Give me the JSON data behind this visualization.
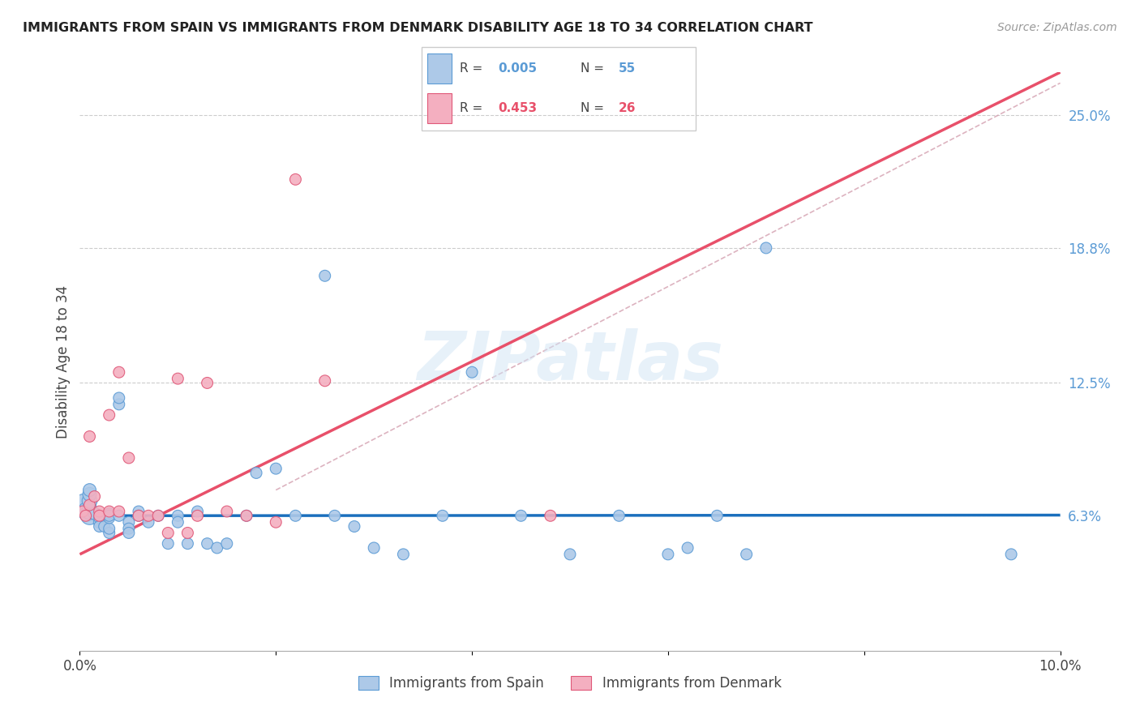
{
  "title": "IMMIGRANTS FROM SPAIN VS IMMIGRANTS FROM DENMARK DISABILITY AGE 18 TO 34 CORRELATION CHART",
  "source": "Source: ZipAtlas.com",
  "ylabel": "Disability Age 18 to 34",
  "legend_label_spain": "Immigrants from Spain",
  "legend_label_denmark": "Immigrants from Denmark",
  "xlim": [
    0.0,
    0.1
  ],
  "ylim": [
    0.0,
    0.27
  ],
  "ytick_labels_right": [
    "6.3%",
    "12.5%",
    "18.8%",
    "25.0%"
  ],
  "ytick_values_right": [
    0.063,
    0.125,
    0.188,
    0.25
  ],
  "color_spain": "#adc9e8",
  "color_denmark": "#f4afc0",
  "color_spain_edge": "#5b9bd5",
  "color_denmark_edge": "#e05878",
  "color_spain_line": "#1a6fbd",
  "color_denmark_line": "#e8506a",
  "color_diag": "#d4a0a8",
  "color_grid": "#cccccc",
  "color_title": "#222222",
  "color_right_labels": "#5b9bd5",
  "color_legend_r_spain": "#5b9bd5",
  "color_legend_n_spain": "#5b9bd5",
  "color_legend_r_denmark": "#e8506a",
  "color_legend_n_denmark": "#e8506a",
  "watermark": "ZIPatlas",
  "spain_x": [
    0.0005,
    0.0008,
    0.001,
    0.001,
    0.001,
    0.001,
    0.001,
    0.0015,
    0.002,
    0.002,
    0.002,
    0.0025,
    0.003,
    0.003,
    0.003,
    0.003,
    0.003,
    0.004,
    0.004,
    0.004,
    0.005,
    0.005,
    0.005,
    0.006,
    0.006,
    0.007,
    0.008,
    0.009,
    0.01,
    0.01,
    0.011,
    0.012,
    0.013,
    0.014,
    0.015,
    0.017,
    0.018,
    0.02,
    0.022,
    0.025,
    0.026,
    0.028,
    0.03,
    0.033,
    0.037,
    0.04,
    0.045,
    0.05,
    0.055,
    0.06,
    0.062,
    0.065,
    0.068,
    0.07,
    0.095
  ],
  "spain_y": [
    0.068,
    0.065,
    0.063,
    0.065,
    0.07,
    0.073,
    0.075,
    0.064,
    0.06,
    0.062,
    0.058,
    0.058,
    0.055,
    0.057,
    0.062,
    0.064,
    0.063,
    0.115,
    0.118,
    0.063,
    0.06,
    0.057,
    0.055,
    0.065,
    0.063,
    0.06,
    0.063,
    0.05,
    0.063,
    0.06,
    0.05,
    0.065,
    0.05,
    0.048,
    0.05,
    0.063,
    0.083,
    0.085,
    0.063,
    0.175,
    0.063,
    0.058,
    0.048,
    0.045,
    0.063,
    0.13,
    0.063,
    0.045,
    0.063,
    0.045,
    0.048,
    0.063,
    0.045,
    0.188,
    0.045
  ],
  "spain_sizes": [
    400,
    300,
    250,
    200,
    180,
    150,
    130,
    120,
    110,
    100,
    100,
    100,
    100,
    100,
    100,
    100,
    100,
    100,
    100,
    100,
    100,
    100,
    100,
    100,
    100,
    100,
    100,
    100,
    100,
    100,
    100,
    100,
    100,
    100,
    100,
    100,
    100,
    100,
    100,
    100,
    100,
    100,
    100,
    100,
    100,
    100,
    100,
    100,
    100,
    100,
    100,
    100,
    100,
    100,
    100
  ],
  "denmark_x": [
    0.0003,
    0.0006,
    0.001,
    0.001,
    0.0015,
    0.002,
    0.002,
    0.003,
    0.003,
    0.004,
    0.004,
    0.005,
    0.006,
    0.007,
    0.008,
    0.009,
    0.01,
    0.011,
    0.012,
    0.013,
    0.015,
    0.017,
    0.02,
    0.022,
    0.025,
    0.048
  ],
  "denmark_y": [
    0.065,
    0.063,
    0.1,
    0.068,
    0.072,
    0.065,
    0.063,
    0.11,
    0.065,
    0.065,
    0.13,
    0.09,
    0.063,
    0.063,
    0.063,
    0.055,
    0.127,
    0.055,
    0.063,
    0.125,
    0.065,
    0.063,
    0.06,
    0.22,
    0.126,
    0.063
  ],
  "denmark_sizes": [
    100,
    100,
    100,
    100,
    100,
    100,
    100,
    100,
    100,
    100,
    100,
    100,
    100,
    100,
    100,
    100,
    100,
    100,
    100,
    100,
    100,
    100,
    100,
    100,
    100,
    100
  ],
  "spain_line_x": [
    0.0,
    0.1
  ],
  "spain_line_y": [
    0.063,
    0.0633
  ],
  "denmark_line_x": [
    0.0,
    0.1
  ],
  "denmark_line_y": [
    0.045,
    0.27
  ],
  "diag_line_x": [
    0.02,
    0.1
  ],
  "diag_line_y": [
    0.075,
    0.265
  ]
}
